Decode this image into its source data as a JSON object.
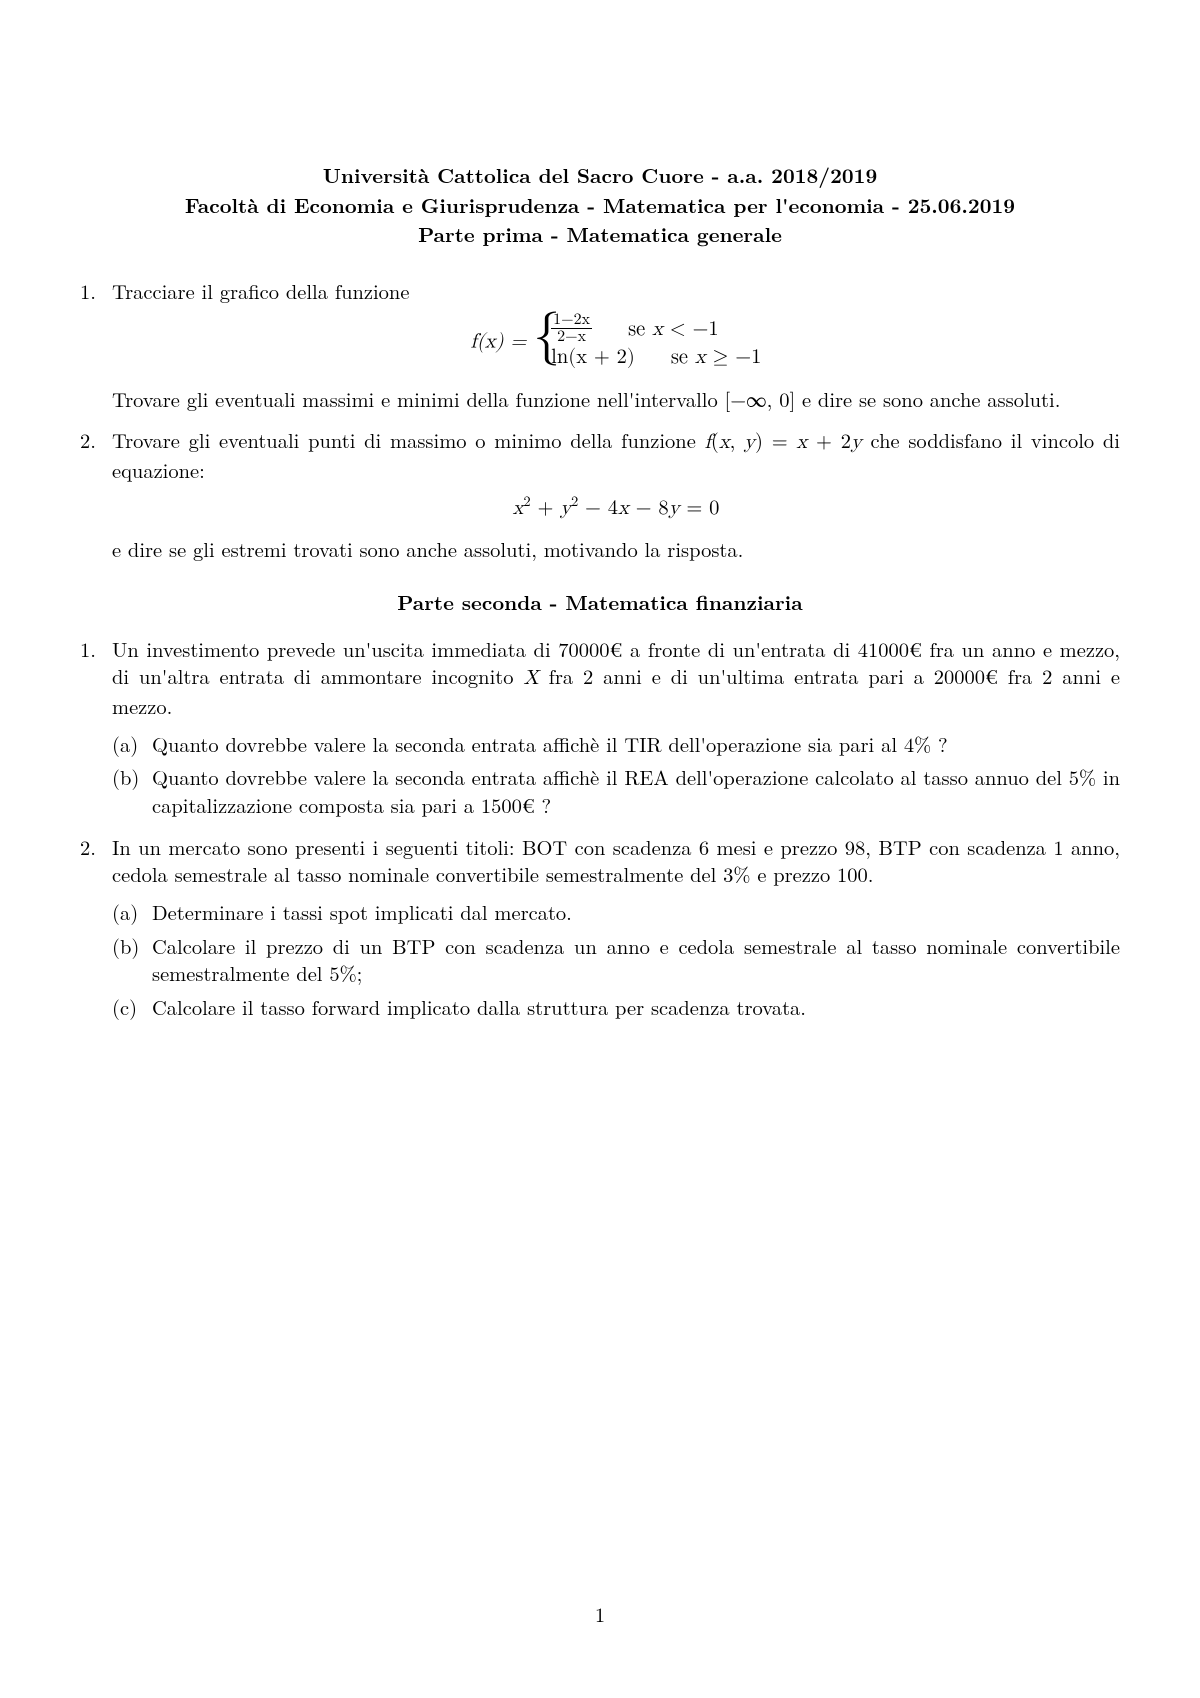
{
  "header": {
    "line1": "Università Cattolica del Sacro Cuore - a.a. 2018/2019",
    "line2": "Facoltà di Economia e Giurisprudenza - Matematica per l'economia - 25.06.2019",
    "line3": "Parte prima - Matematica generale"
  },
  "part1": {
    "q1": {
      "num": "1.",
      "intro": "Tracciare il grafico della funzione",
      "eq_lhs": "f(x) = ",
      "case1_expr_top": "1−2x",
      "case1_expr_bot": "2−x",
      "case1_cond": "se x < −1",
      "case2_expr": "ln(x + 2)",
      "case2_cond": "se x ≥ −1",
      "after": "Trovare gli eventuali massimi e minimi della funzione nell'intervallo [−∞, 0] e dire se sono anche assoluti."
    },
    "q2": {
      "num": "2.",
      "intro": "Trovare gli eventuali punti di massimo o minimo della funzione f(x, y) = x + 2y che soddisfano il vincolo di equazione:",
      "eq": "x² + y² − 4x − 8y = 0",
      "after": "e dire se gli estremi trovati sono anche assoluti, motivando la risposta."
    }
  },
  "part2_title": "Parte seconda - Matematica finanziaria",
  "part2": {
    "q1": {
      "num": "1.",
      "text": "Un investimento prevede un'uscita immediata di 70000€ a fronte di un'entrata di 41000€ fra un anno e mezzo, di un'altra entrata di ammontare incognito X fra 2 anni e di un'ultima entrata pari a 20000€ fra 2 anni e mezzo.",
      "a_num": "(a)",
      "a": "Quanto dovrebbe valere la seconda entrata affichè il TIR dell'operazione sia pari al 4% ?",
      "b_num": "(b)",
      "b": "Quanto dovrebbe valere la seconda entrata affichè il REA dell'operazione calcolato al tasso annuo del 5% in capitalizzazione composta sia pari a 1500€ ?"
    },
    "q2": {
      "num": "2.",
      "text": "In un mercato sono presenti i seguenti titoli: BOT con scadenza 6 mesi e prezzo 98, BTP con scadenza 1 anno, cedola semestrale al tasso nominale convertibile semestralmente del 3% e prezzo 100.",
      "a_num": "(a)",
      "a": "Determinare i tassi spot implicati dal mercato.",
      "b_num": "(b)",
      "b": "Calcolare il prezzo di un BTP con scadenza un anno e cedola semestrale al tasso nominale convertibile semestralmente del 5%;",
      "c_num": "(c)",
      "c": "Calcolare il tasso forward implicato dalla struttura per scadenza trovata."
    }
  },
  "page_number": "1"
}
